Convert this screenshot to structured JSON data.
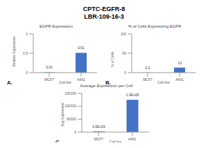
{
  "title": "CPTC-EGFR-8",
  "subtitle": "LBR-109-16-3",
  "chart_data": [
    {
      "panel": "A.",
      "type": "bar",
      "title": "EGFR Expression",
      "x_label": "Cell line",
      "y_label": "Relative Expression",
      "categories": [
        "MCF7",
        "A431"
      ],
      "values": [
        0.01,
        0.51
      ],
      "color": "#4472c4",
      "ylim": [
        0,
        1
      ],
      "yticks": [
        0,
        0.5,
        1
      ],
      "grid": false,
      "data_labels": true
    },
    {
      "panel": "B.",
      "type": "bar",
      "title": "% of Cells Expressing EGFR",
      "x_label": "Cell line",
      "y_label": "% of Cells",
      "categories": [
        "MCF7",
        "A431"
      ],
      "values": [
        0.2,
        13
      ],
      "color": "#4472c4",
      "ylim": [
        0,
        100
      ],
      "yticks": [
        0,
        50,
        100
      ],
      "grid": false,
      "data_labels": true
    },
    {
      "panel": "C.",
      "type": "bar",
      "title": "Average Expression per Cell",
      "x_label": "Cell line",
      "y_label": "Avg Expression",
      "categories": [
        "MCF7",
        "A431"
      ],
      "values": [
        3000,
        125000
      ],
      "value_labels": [
        "3.0E+03",
        "1.3E+05"
      ],
      "color": "#4472c4",
      "ylim": [
        0,
        150000
      ],
      "yticks": [
        0,
        50000,
        100000,
        150000
      ],
      "grid": false,
      "data_labels": true
    }
  ]
}
